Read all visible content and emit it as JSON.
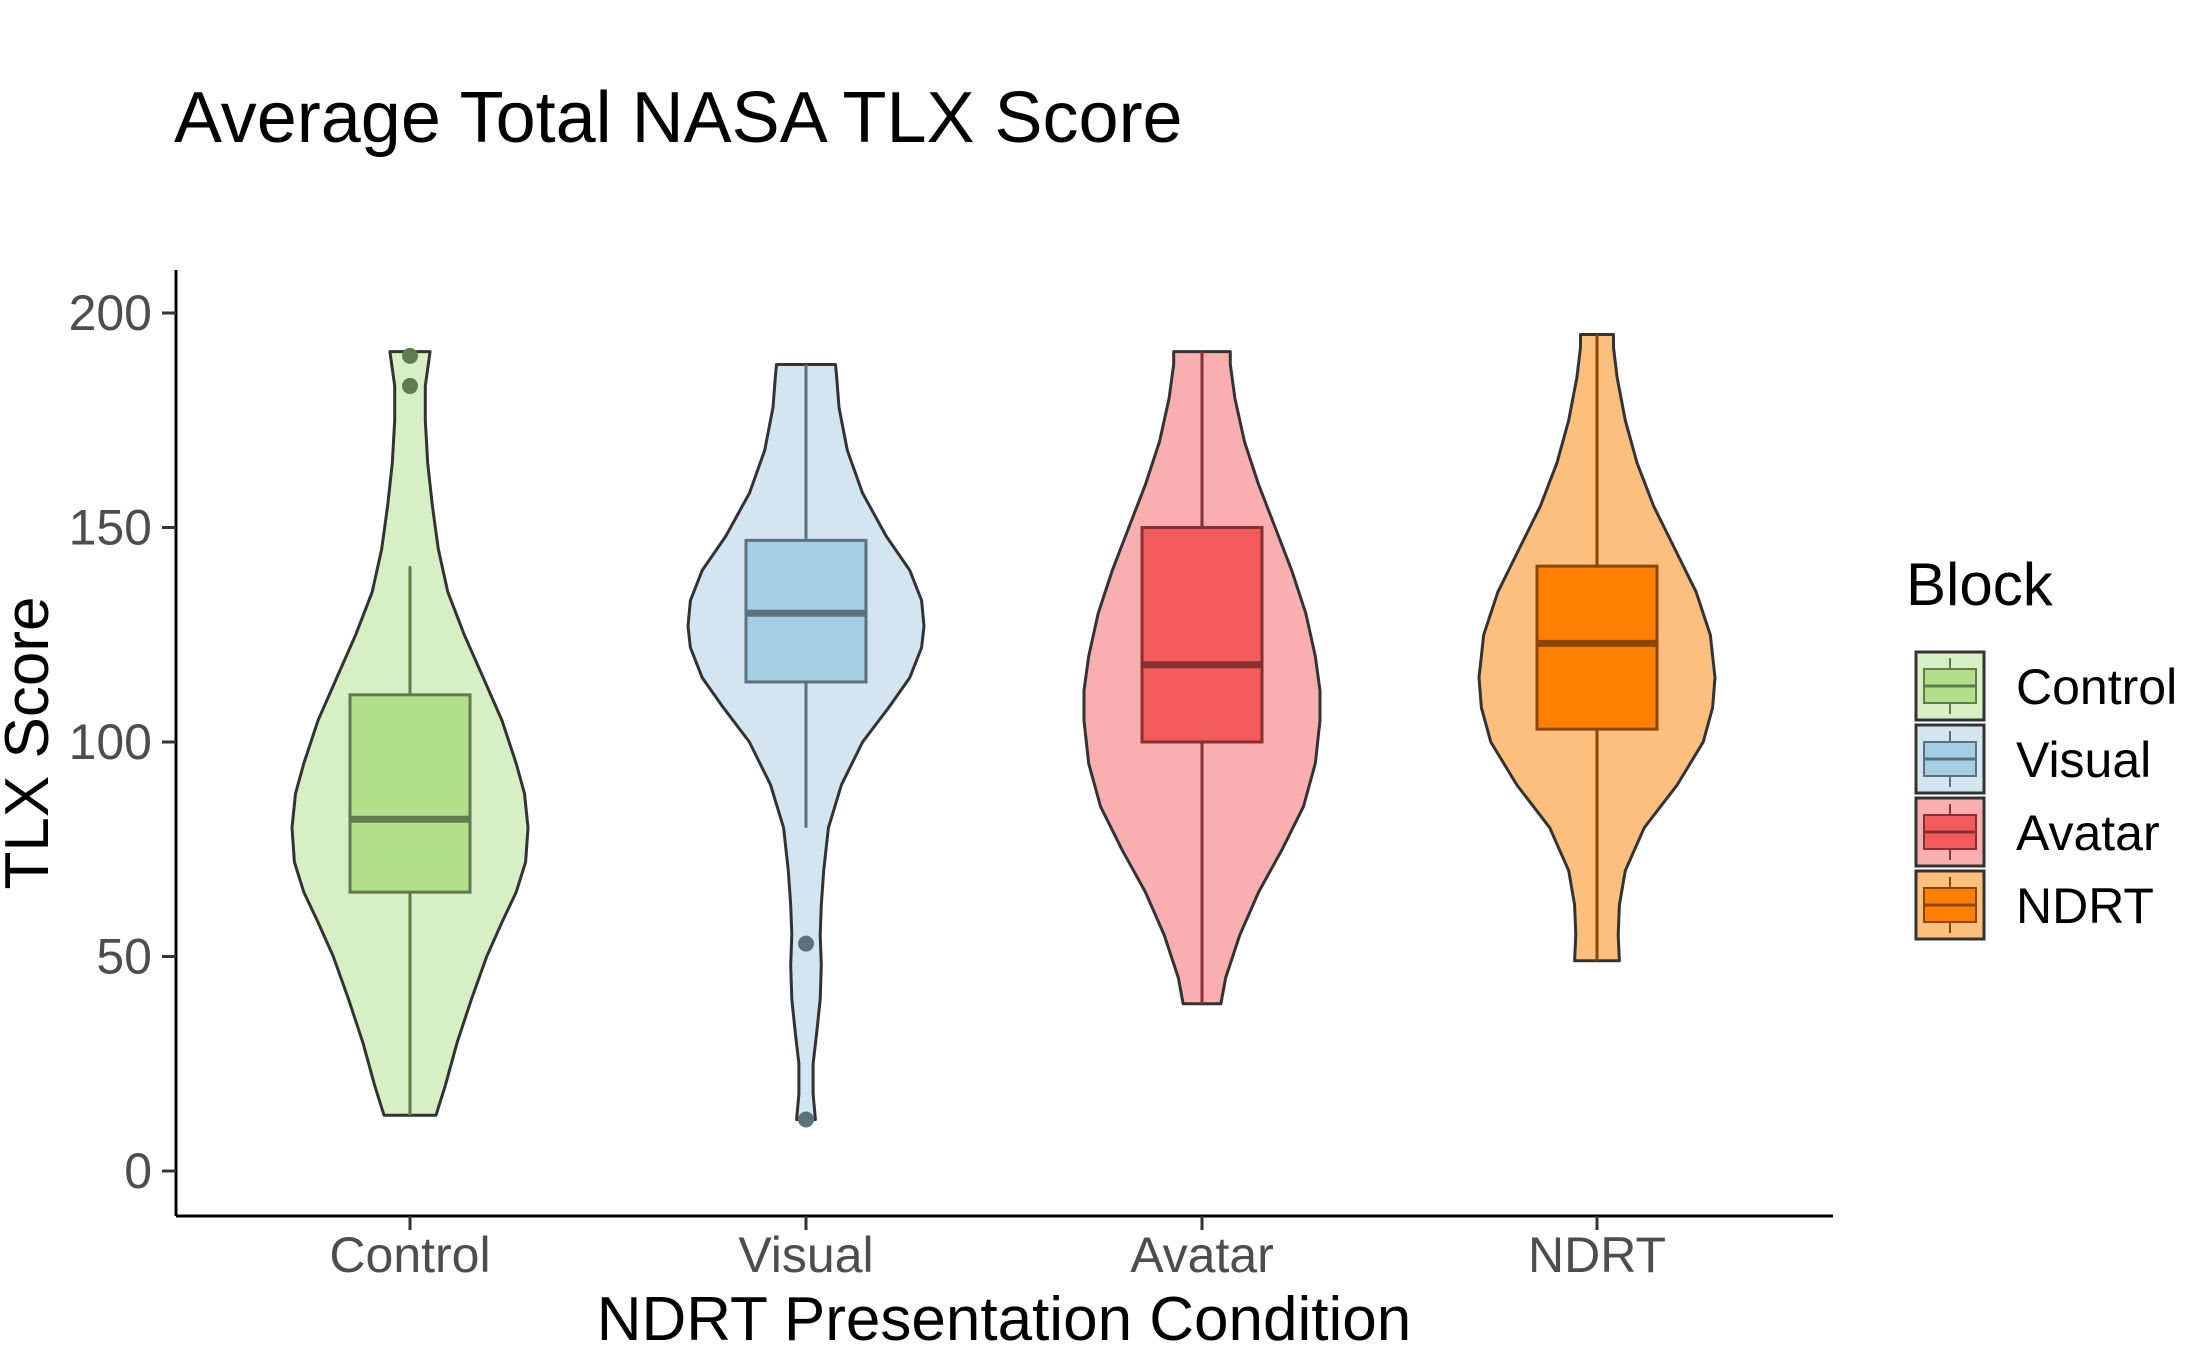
{
  "chart_data": {
    "type": "violin",
    "title": "Average Total NASA TLX Score",
    "xlabel": "NDRT Presentation Condition",
    "ylabel": "TLX Score",
    "categories": [
      "Control",
      "Visual",
      "Avatar",
      "NDRT"
    ],
    "ylim": [
      -10,
      210
    ],
    "yticks": [
      0,
      50,
      100,
      150,
      200
    ],
    "grid": false,
    "legend": {
      "title": "Block",
      "position": "right",
      "entries": [
        "Control",
        "Visual",
        "Avatar",
        "NDRT"
      ]
    },
    "series": [
      {
        "name": "Control",
        "violin_color": "#d7efc4",
        "box_color": "#b2df8a",
        "violin_range": [
          13,
          191
        ],
        "box": {
          "whisker_low": 13,
          "q1": 65,
          "median": 82,
          "q3": 111,
          "whisker_high": 141
        },
        "outliers": [
          183,
          190
        ],
        "density": [
          [
            13,
            0.22
          ],
          [
            20,
            0.3
          ],
          [
            30,
            0.4
          ],
          [
            40,
            0.52
          ],
          [
            50,
            0.65
          ],
          [
            58,
            0.78
          ],
          [
            65,
            0.9
          ],
          [
            72,
            0.98
          ],
          [
            80,
            1.0
          ],
          [
            88,
            0.97
          ],
          [
            95,
            0.9
          ],
          [
            105,
            0.78
          ],
          [
            115,
            0.62
          ],
          [
            125,
            0.46
          ],
          [
            135,
            0.32
          ],
          [
            145,
            0.24
          ],
          [
            155,
            0.19
          ],
          [
            165,
            0.15
          ],
          [
            175,
            0.13
          ],
          [
            183,
            0.13
          ],
          [
            187,
            0.15
          ],
          [
            191,
            0.17
          ]
        ]
      },
      {
        "name": "Visual",
        "violin_color": "#d3e5f1",
        "box_color": "#a6cee3",
        "violin_range": [
          12,
          188
        ],
        "box": {
          "whisker_low": 80,
          "q1": 114,
          "median": 130,
          "q3": 147,
          "whisker_high": 188
        },
        "outliers": [
          12,
          53
        ],
        "density": [
          [
            12,
            0.08
          ],
          [
            18,
            0.06
          ],
          [
            25,
            0.06
          ],
          [
            32,
            0.09
          ],
          [
            40,
            0.12
          ],
          [
            48,
            0.13
          ],
          [
            55,
            0.12
          ],
          [
            62,
            0.13
          ],
          [
            70,
            0.15
          ],
          [
            80,
            0.19
          ],
          [
            90,
            0.3
          ],
          [
            100,
            0.48
          ],
          [
            108,
            0.7
          ],
          [
            115,
            0.88
          ],
          [
            122,
            0.98
          ],
          [
            127,
            1.0
          ],
          [
            133,
            0.98
          ],
          [
            140,
            0.88
          ],
          [
            148,
            0.68
          ],
          [
            158,
            0.48
          ],
          [
            168,
            0.35
          ],
          [
            178,
            0.28
          ],
          [
            185,
            0.26
          ],
          [
            188,
            0.25
          ]
        ]
      },
      {
        "name": "Avatar",
        "violin_color": "#f9afb0",
        "box_color": "#f35a5c",
        "violin_range": [
          39,
          191
        ],
        "box": {
          "whisker_low": 39,
          "q1": 100,
          "median": 118,
          "q3": 150,
          "whisker_high": 191
        },
        "outliers": [],
        "density": [
          [
            39,
            0.16
          ],
          [
            45,
            0.2
          ],
          [
            55,
            0.32
          ],
          [
            65,
            0.48
          ],
          [
            75,
            0.68
          ],
          [
            85,
            0.86
          ],
          [
            95,
            0.96
          ],
          [
            105,
            1.0
          ],
          [
            112,
            1.0
          ],
          [
            120,
            0.96
          ],
          [
            130,
            0.88
          ],
          [
            140,
            0.76
          ],
          [
            150,
            0.62
          ],
          [
            160,
            0.48
          ],
          [
            170,
            0.36
          ],
          [
            180,
            0.28
          ],
          [
            188,
            0.24
          ],
          [
            191,
            0.24
          ]
        ]
      },
      {
        "name": "NDRT",
        "violin_color": "#fdbf7e",
        "box_color": "#ff7f00",
        "violin_range": [
          49,
          195
        ],
        "box": {
          "whisker_low": 49,
          "q1": 103,
          "median": 123,
          "q3": 141,
          "whisker_high": 195
        },
        "outliers": [],
        "density": [
          [
            49,
            0.19
          ],
          [
            55,
            0.18
          ],
          [
            62,
            0.19
          ],
          [
            70,
            0.24
          ],
          [
            80,
            0.4
          ],
          [
            90,
            0.68
          ],
          [
            100,
            0.9
          ],
          [
            108,
            0.98
          ],
          [
            115,
            1.0
          ],
          [
            125,
            0.96
          ],
          [
            135,
            0.84
          ],
          [
            145,
            0.66
          ],
          [
            155,
            0.48
          ],
          [
            165,
            0.34
          ],
          [
            175,
            0.24
          ],
          [
            185,
            0.17
          ],
          [
            192,
            0.14
          ],
          [
            195,
            0.14
          ]
        ]
      }
    ]
  }
}
